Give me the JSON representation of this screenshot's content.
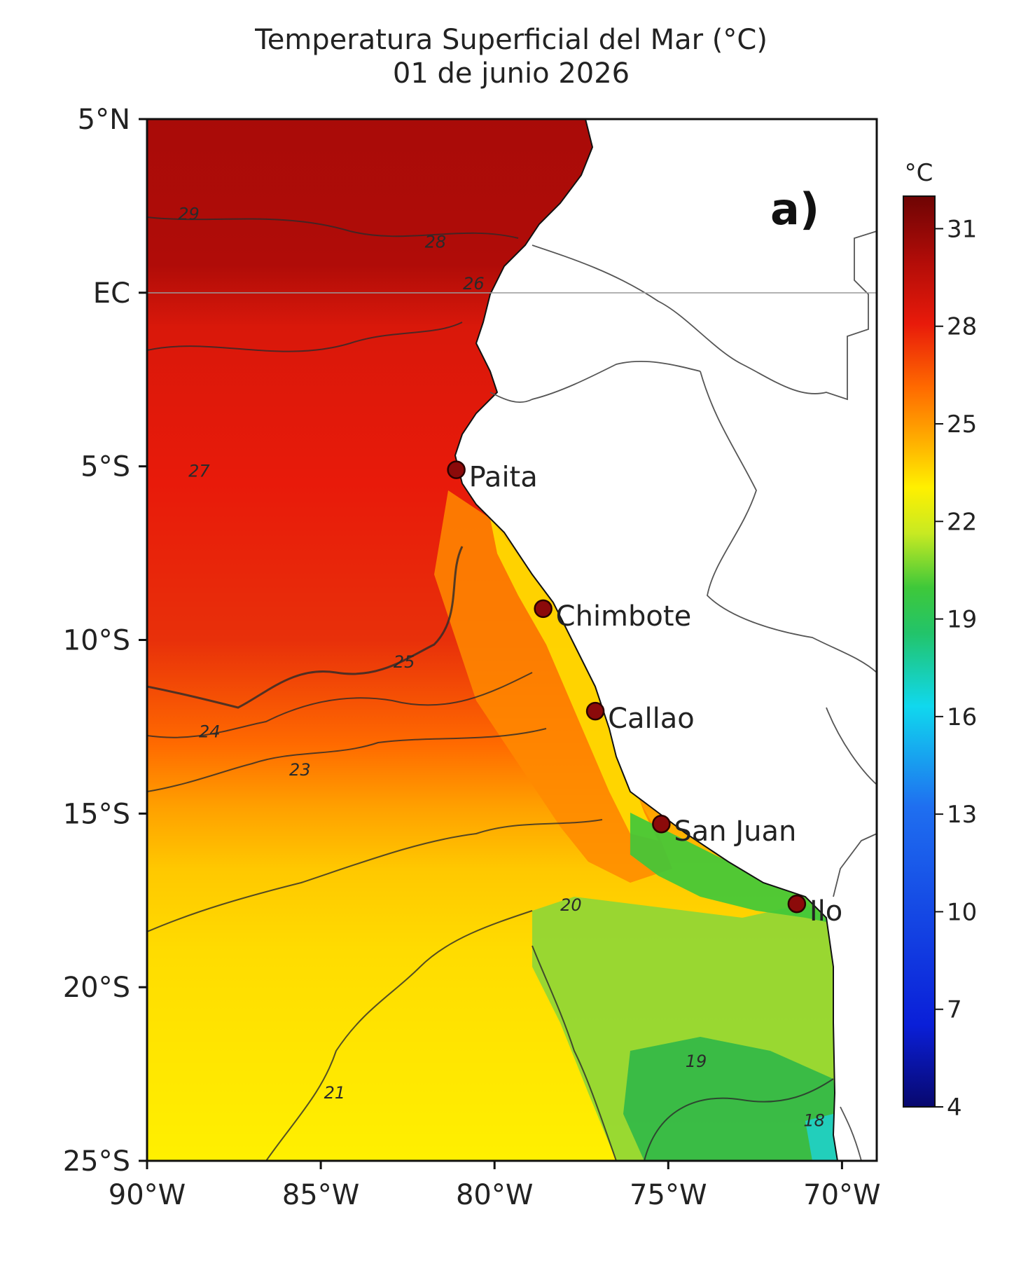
{
  "title": {
    "line1": "Temperatura Superficial del Mar (°C)",
    "line2": "01 de junio 2026"
  },
  "panel_label": "a)",
  "axes": {
    "y_ticks": [
      {
        "label": "5°N",
        "lat": 5
      },
      {
        "label": "EC",
        "lat": 0
      },
      {
        "label": "5°S",
        "lat": -5
      },
      {
        "label": "10°S",
        "lat": -10
      },
      {
        "label": "15°S",
        "lat": -15
      },
      {
        "label": "20°S",
        "lat": -20
      },
      {
        "label": "25°S",
        "lat": -25
      }
    ],
    "x_ticks": [
      {
        "label": "90°W",
        "lon": -90
      },
      {
        "label": "85°W",
        "lon": -85
      },
      {
        "label": "80°W",
        "lon": -80
      },
      {
        "label": "75°W",
        "lon": -75
      },
      {
        "label": "70°W",
        "lon": -70
      }
    ],
    "lon_range": [
      -90,
      -69
    ],
    "lat_range": [
      -25,
      5
    ]
  },
  "colorbar": {
    "unit": "°C",
    "ticks": [
      "31",
      "28",
      "25",
      "22",
      "19",
      "16",
      "13",
      "10",
      "7",
      "4"
    ],
    "range": [
      4,
      32
    ],
    "colors": [
      "#08086e",
      "#0a1fd8",
      "#1f6ff0",
      "#10d8ee",
      "#22c46a",
      "#3ec83a",
      "#c8ea22",
      "#fff000",
      "#ffb000",
      "#ff6a00",
      "#e81a0a",
      "#b00c08",
      "#6e0404"
    ]
  },
  "cities": [
    {
      "name": "Paita",
      "lon": -81.1,
      "lat": -5.1
    },
    {
      "name": "Chimbote",
      "lon": -78.6,
      "lat": -9.1
    },
    {
      "name": "Callao",
      "lon": -77.1,
      "lat": -12.05
    },
    {
      "name": "San Juan",
      "lon": -75.2,
      "lat": -15.3
    },
    {
      "name": "Ilo",
      "lon": -71.3,
      "lat": -17.6
    }
  ],
  "contour_labels": [
    {
      "text": "29",
      "lon": -88.8,
      "lat": 2.1
    },
    {
      "text": "28",
      "lon": -81.7,
      "lat": 1.3
    },
    {
      "text": "26",
      "lon": -80.6,
      "lat": 0.1
    },
    {
      "text": "27",
      "lon": -88.5,
      "lat": -5.3
    },
    {
      "text": "25",
      "lon": -82.6,
      "lat": -10.8
    },
    {
      "text": "24",
      "lon": -88.2,
      "lat": -12.8
    },
    {
      "text": "23",
      "lon": -85.6,
      "lat": -13.9
    },
    {
      "text": "20",
      "lon": -77.8,
      "lat": -17.8
    },
    {
      "text": "19",
      "lon": -74.2,
      "lat": -22.3
    },
    {
      "text": "21",
      "lon": -84.6,
      "lat": -23.2
    },
    {
      "text": "18",
      "lon": -70.8,
      "lat": -24.0
    }
  ],
  "color_scheme": {
    "frame": "#111111",
    "land": "#ffffff",
    "border": "#555555",
    "contour": "#2a2a2a",
    "marker": "#8b0a0a"
  }
}
